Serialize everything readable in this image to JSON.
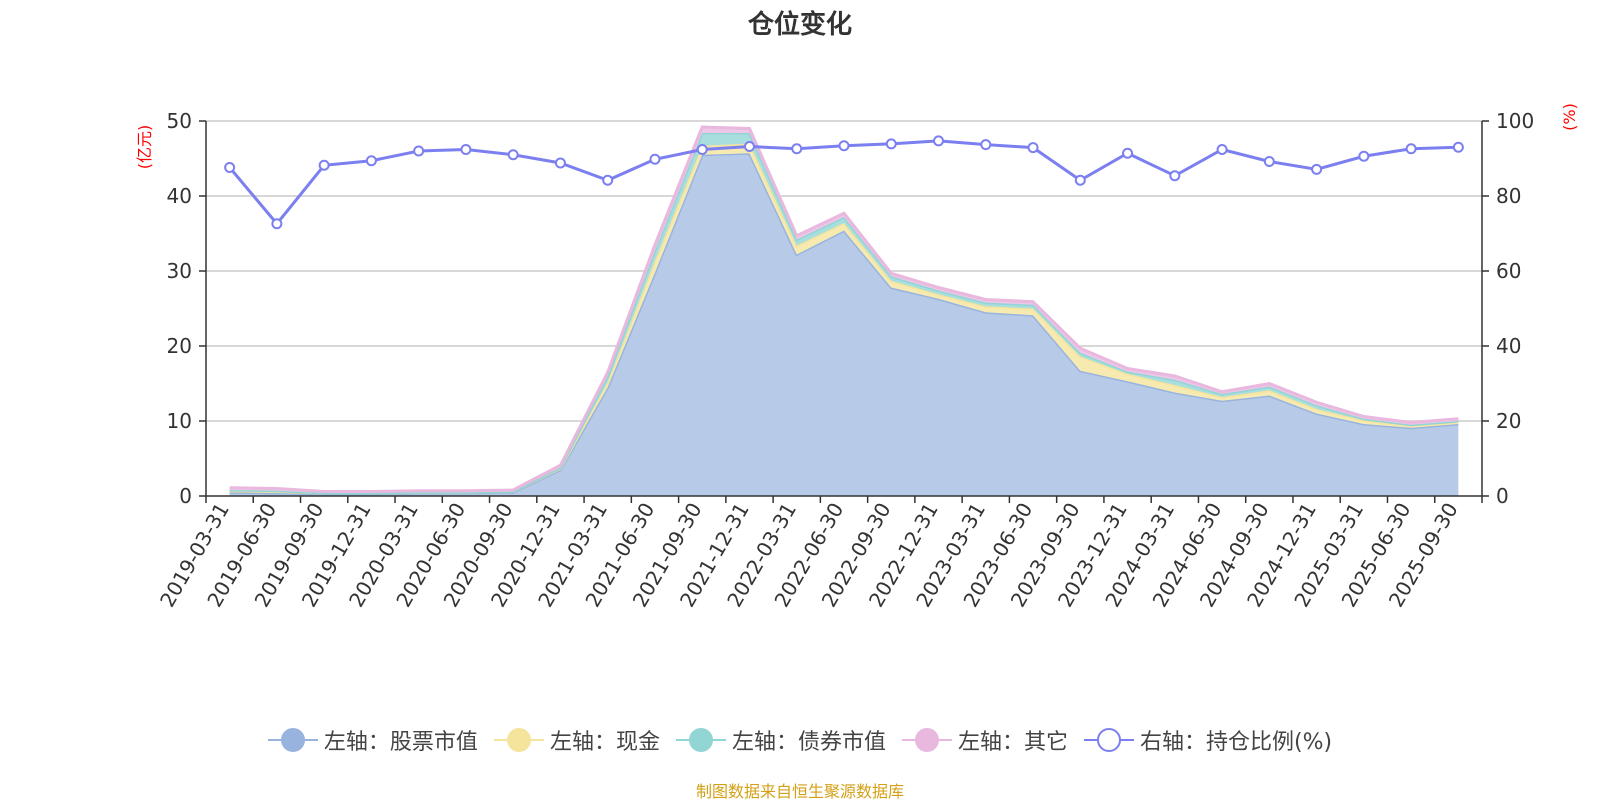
{
  "chart_data": {
    "type": "area",
    "title": "仓位变化",
    "left_axis_unit": "(亿元)",
    "right_axis_unit": "(%)",
    "categories": [
      "2019-03-31",
      "2019-06-30",
      "2019-09-30",
      "2019-12-31",
      "2020-03-31",
      "2020-06-30",
      "2020-09-30",
      "2020-12-31",
      "2021-03-31",
      "2021-06-30",
      "2021-09-30",
      "2021-12-31",
      "2022-03-31",
      "2022-06-30",
      "2022-09-30",
      "2022-12-31",
      "2023-03-31",
      "2023-06-30",
      "2023-09-30",
      "2023-12-31",
      "2024-03-31",
      "2024-06-30",
      "2024-09-30",
      "2024-12-31",
      "2025-03-31",
      "2025-06-30",
      "2025-09-30"
    ],
    "left_ylim": [
      0,
      50
    ],
    "left_ticks": [
      0,
      10,
      20,
      30,
      40,
      50
    ],
    "right_ylim": [
      0,
      100
    ],
    "right_ticks": [
      0,
      20,
      40,
      60,
      80,
      100
    ],
    "stacked_series": [
      {
        "name": "左轴：股票市值",
        "color": "#98b4de",
        "fill": "#b7cbe9",
        "values": [
          0.5,
          0.4,
          0.3,
          0.3,
          0.4,
          0.4,
          0.5,
          3.5,
          14.5,
          29.8,
          45.5,
          45.7,
          32.2,
          35.4,
          27.8,
          26.3,
          24.5,
          24.1,
          16.7,
          15.3,
          13.8,
          12.7,
          13.4,
          11.0,
          9.6,
          9.1,
          9.6
        ]
      },
      {
        "name": "左轴：现金",
        "color": "#f5e49c",
        "fill": "#f7eab0",
        "values": [
          0.2,
          0.2,
          0.1,
          0.1,
          0.1,
          0.1,
          0.1,
          0.2,
          0.7,
          1.6,
          1.2,
          1.3,
          1.2,
          1.0,
          0.9,
          0.6,
          0.8,
          0.9,
          1.9,
          1.0,
          1.0,
          0.5,
          0.7,
          0.6,
          0.5,
          0.3,
          0.3
        ]
      },
      {
        "name": "左轴：债券市值",
        "color": "#91d5d5",
        "fill": "#a9dedf",
        "values": [
          0.1,
          0.1,
          0.0,
          0.0,
          0.0,
          0.0,
          0.0,
          0.1,
          0.8,
          1.3,
          1.7,
          1.4,
          0.8,
          0.8,
          0.6,
          0.5,
          0.5,
          0.5,
          0.5,
          0.3,
          0.7,
          0.4,
          0.5,
          0.5,
          0.2,
          0.1,
          0.1
        ]
      },
      {
        "name": "左轴：其它",
        "color": "#e8b8de",
        "fill": "#eec6e7",
        "values": [
          0.3,
          0.3,
          0.2,
          0.2,
          0.2,
          0.2,
          0.2,
          0.3,
          0.5,
          0.8,
          0.8,
          0.6,
          0.5,
          0.5,
          0.4,
          0.4,
          0.4,
          0.4,
          0.6,
          0.4,
          0.5,
          0.3,
          0.4,
          0.4,
          0.3,
          0.3,
          0.3
        ]
      }
    ],
    "line_series": {
      "name": "右轴：持仓比例(%)",
      "color": "#7b7ff0",
      "values": [
        87.6,
        72.6,
        88.2,
        89.4,
        92.0,
        92.4,
        91.0,
        88.8,
        84.2,
        89.8,
        92.4,
        93.2,
        92.6,
        93.4,
        93.9,
        94.7,
        93.7,
        92.9,
        84.2,
        91.4,
        85.4,
        92.4,
        89.2,
        87.1,
        90.6,
        92.6,
        93.0
      ]
    },
    "source_note": "制图数据来自恒生聚源数据库"
  }
}
